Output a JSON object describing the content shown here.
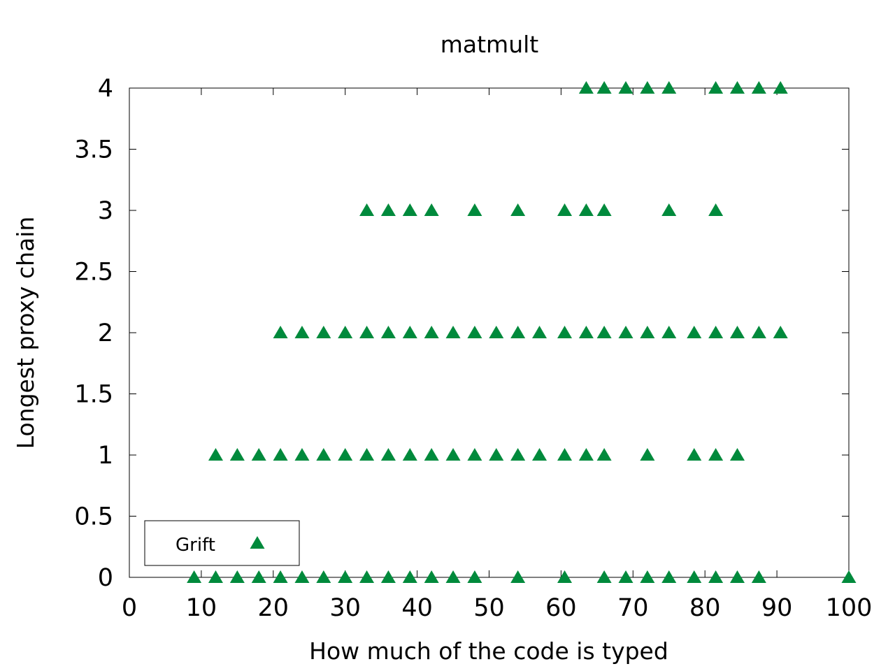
{
  "chart_data": {
    "type": "scatter",
    "title": "matmult",
    "xlabel": "How much of the code is typed",
    "ylabel": "Longest proxy chain",
    "xlim": [
      0,
      100
    ],
    "ylim": [
      0,
      4
    ],
    "xticks": [
      "0",
      "10",
      "20",
      "30",
      "40",
      "50",
      "60",
      "70",
      "80",
      "90",
      "100"
    ],
    "yticks": [
      "0",
      "0.5",
      "1",
      "1.5",
      "2",
      "2.5",
      "3",
      "3.5",
      "4"
    ],
    "grid": false,
    "legend_position": "bottom-left",
    "series": [
      {
        "name": "Grift",
        "marker": "triangle",
        "color": "#008a3c",
        "points": [
          [
            9,
            0
          ],
          [
            12,
            0
          ],
          [
            15,
            0
          ],
          [
            18,
            0
          ],
          [
            21,
            0
          ],
          [
            24,
            0
          ],
          [
            27,
            0
          ],
          [
            30,
            0
          ],
          [
            33,
            0
          ],
          [
            36,
            0
          ],
          [
            39,
            0
          ],
          [
            42,
            0
          ],
          [
            45,
            0
          ],
          [
            48,
            0
          ],
          [
            54,
            0
          ],
          [
            60.5,
            0
          ],
          [
            66,
            0
          ],
          [
            69,
            0
          ],
          [
            72,
            0
          ],
          [
            75,
            0
          ],
          [
            78.5,
            0
          ],
          [
            81.5,
            0
          ],
          [
            84.5,
            0
          ],
          [
            87.5,
            0
          ],
          [
            100,
            0
          ],
          [
            12,
            1
          ],
          [
            15,
            1
          ],
          [
            18,
            1
          ],
          [
            21,
            1
          ],
          [
            24,
            1
          ],
          [
            27,
            1
          ],
          [
            30,
            1
          ],
          [
            33,
            1
          ],
          [
            36,
            1
          ],
          [
            39,
            1
          ],
          [
            42,
            1
          ],
          [
            45,
            1
          ],
          [
            48,
            1
          ],
          [
            51,
            1
          ],
          [
            54,
            1
          ],
          [
            57,
            1
          ],
          [
            60.5,
            1
          ],
          [
            63.5,
            1
          ],
          [
            66,
            1
          ],
          [
            72,
            1
          ],
          [
            78.5,
            1
          ],
          [
            81.5,
            1
          ],
          [
            84.5,
            1
          ],
          [
            21,
            2
          ],
          [
            24,
            2
          ],
          [
            27,
            2
          ],
          [
            30,
            2
          ],
          [
            33,
            2
          ],
          [
            36,
            2
          ],
          [
            39,
            2
          ],
          [
            42,
            2
          ],
          [
            45,
            2
          ],
          [
            48,
            2
          ],
          [
            51,
            2
          ],
          [
            54,
            2
          ],
          [
            57,
            2
          ],
          [
            60.5,
            2
          ],
          [
            63.5,
            2
          ],
          [
            66,
            2
          ],
          [
            69,
            2
          ],
          [
            72,
            2
          ],
          [
            75,
            2
          ],
          [
            78.5,
            2
          ],
          [
            81.5,
            2
          ],
          [
            84.5,
            2
          ],
          [
            87.5,
            2
          ],
          [
            90.5,
            2
          ],
          [
            33,
            3
          ],
          [
            36,
            3
          ],
          [
            39,
            3
          ],
          [
            42,
            3
          ],
          [
            48,
            3
          ],
          [
            54,
            3
          ],
          [
            60.5,
            3
          ],
          [
            63.5,
            3
          ],
          [
            66,
            3
          ],
          [
            75,
            3
          ],
          [
            81.5,
            3
          ],
          [
            63.5,
            4
          ],
          [
            66,
            4
          ],
          [
            69,
            4
          ],
          [
            72,
            4
          ],
          [
            75,
            4
          ],
          [
            81.5,
            4
          ],
          [
            84.5,
            4
          ],
          [
            87.5,
            4
          ],
          [
            90.5,
            4
          ]
        ]
      }
    ]
  }
}
